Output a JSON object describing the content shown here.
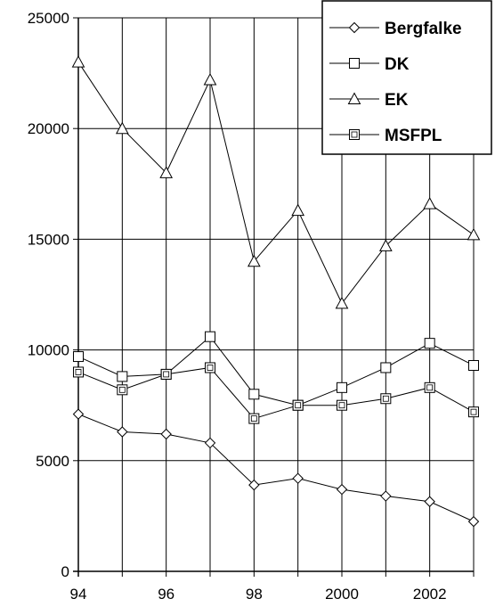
{
  "chart_data": {
    "type": "line",
    "title": "",
    "xlabel": "",
    "ylabel": "",
    "x": [
      1994,
      1995,
      1996,
      1997,
      1998,
      1999,
      2000,
      2001,
      2002,
      2003
    ],
    "xtick_values": [
      1994,
      1996,
      1998,
      2000,
      2002
    ],
    "xtick_labels": [
      "94",
      "96",
      "98",
      "2000",
      "2002"
    ],
    "ylim": [
      0,
      25000
    ],
    "yticks": [
      0,
      5000,
      10000,
      15000,
      20000,
      25000
    ],
    "ytick_labels": [
      "0",
      "5000",
      "10000",
      "15000",
      "20000",
      "25000"
    ],
    "grid": true,
    "legend_position": "top-right",
    "series": [
      {
        "name": "Bergfalke",
        "marker": "diamond",
        "values": [
          7100,
          6300,
          6200,
          5800,
          3900,
          4200,
          3700,
          3400,
          3150,
          2250
        ]
      },
      {
        "name": "DK",
        "marker": "square",
        "values": [
          9700,
          8800,
          8900,
          10600,
          8000,
          7500,
          8300,
          9200,
          10300,
          9300
        ]
      },
      {
        "name": "EK",
        "marker": "triangle",
        "values": [
          23000,
          20000,
          18000,
          22200,
          14000,
          16300,
          12100,
          14700,
          16600,
          15200
        ]
      },
      {
        "name": "MSFPL",
        "marker": "square-inner",
        "values": [
          9000,
          8200,
          8900,
          9200,
          6900,
          7500,
          7500,
          7800,
          8300,
          7200
        ]
      }
    ]
  }
}
